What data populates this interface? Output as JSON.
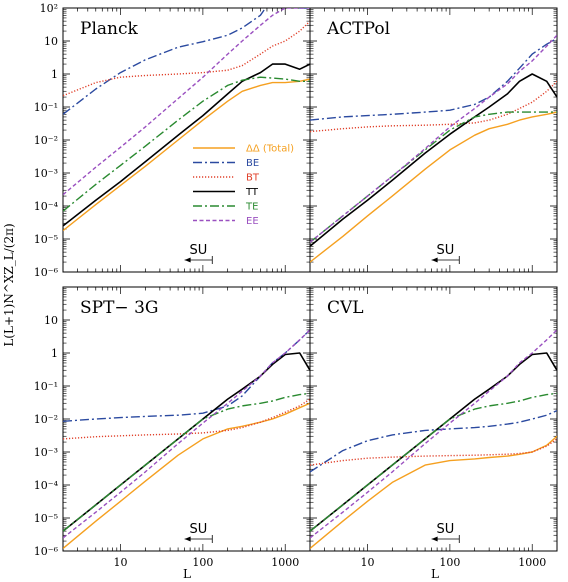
{
  "chart_data": [
    {
      "type": "line",
      "title": "Planck",
      "xlabel": "L",
      "ylabel": "L(L+1)N^XZ_L/(2π)",
      "x_scale": "log",
      "y_scale": "log",
      "xlim": [
        2,
        2000
      ],
      "ylim": [
        1e-06,
        100
      ],
      "legend": {
        "position": "center",
        "entries": [
          "ΔΔ (Total)",
          "BE",
          "BT",
          "TT",
          "TE",
          "EE"
        ]
      },
      "annotation": {
        "text": "SU",
        "arrow": "left",
        "x_start": 130,
        "x_end": 60
      },
      "x": [
        2,
        5,
        10,
        20,
        50,
        100,
        200,
        300,
        500,
        700,
        1000,
        1500,
        2000
      ],
      "series": [
        {
          "name": "ΔΔ (Total)",
          "color": "#f5a020",
          "dash": "solid",
          "values": [
            1.8e-05,
            0.00011,
            0.00042,
            0.0016,
            0.01,
            0.04,
            0.15,
            0.3,
            0.45,
            0.55,
            0.55,
            0.6,
            0.7
          ]
        },
        {
          "name": "BE",
          "color": "#2b4aa0",
          "dash": "dashdot",
          "values": [
            0.06,
            0.35,
            1.1,
            2.7,
            6.5,
            9.5,
            15,
            25,
            60,
            200,
            500,
            100,
            100
          ]
        },
        {
          "name": "BT",
          "color": "#e0402a",
          "dash": "dotted",
          "values": [
            0.22,
            0.55,
            0.8,
            0.9,
            1.0,
            1.1,
            1.3,
            1.8,
            4.0,
            7.0,
            10,
            20,
            40
          ]
        },
        {
          "name": "TT",
          "color": "#000000",
          "dash": "solid",
          "values": [
            2.5e-05,
            0.00015,
            0.00055,
            0.0022,
            0.014,
            0.055,
            0.25,
            0.6,
            1.1,
            2.0,
            2.0,
            1.4,
            2.0
          ]
        },
        {
          "name": "TE",
          "color": "#2a8a30",
          "dash": "dashdot",
          "values": [
            7e-05,
            0.00045,
            0.0017,
            0.0065,
            0.04,
            0.15,
            0.45,
            0.65,
            0.8,
            0.75,
            0.7,
            0.6,
            0.6
          ]
        },
        {
          "name": "EE",
          "color": "#9a50c0",
          "dash": "dashed",
          "values": [
            0.00022,
            0.0015,
            0.006,
            0.025,
            0.18,
            0.8,
            4,
            10,
            30,
            60,
            100,
            100,
            100
          ]
        }
      ]
    },
    {
      "type": "line",
      "title": "ACTPol",
      "xlabel": "L",
      "ylabel": "L(L+1)N^XZ_L/(2π)",
      "x_scale": "log",
      "y_scale": "log",
      "xlim": [
        2,
        2000
      ],
      "ylim": [
        1e-06,
        100
      ],
      "annotation": {
        "text": "SU",
        "arrow": "left",
        "x_start": 130,
        "x_end": 60
      },
      "x": [
        2,
        5,
        10,
        20,
        50,
        100,
        200,
        300,
        500,
        700,
        1000,
        1500,
        2000
      ],
      "series": [
        {
          "name": "ΔΔ (Total)",
          "color": "#f5a020",
          "dash": "solid",
          "values": [
            2e-06,
            1.2e-05,
            5e-05,
            0.0002,
            0.0013,
            0.005,
            0.014,
            0.022,
            0.03,
            0.04,
            0.05,
            0.06,
            0.07
          ]
        },
        {
          "name": "BE",
          "color": "#2b4aa0",
          "dash": "dashdot",
          "values": [
            0.04,
            0.05,
            0.055,
            0.06,
            0.07,
            0.08,
            0.12,
            0.2,
            0.6,
            1.5,
            4,
            8,
            12
          ]
        },
        {
          "name": "BT",
          "color": "#e0402a",
          "dash": "dotted",
          "values": [
            0.018,
            0.022,
            0.025,
            0.027,
            0.028,
            0.03,
            0.033,
            0.04,
            0.06,
            0.09,
            0.14,
            0.3,
            0.6
          ]
        },
        {
          "name": "TT",
          "color": "#000000",
          "dash": "solid",
          "values": [
            6e-06,
            4e-05,
            0.00015,
            0.0006,
            0.004,
            0.015,
            0.05,
            0.1,
            0.25,
            0.6,
            1.0,
            0.6,
            0.2
          ]
        },
        {
          "name": "TE",
          "color": "#2a8a30",
          "dash": "dashdot",
          "values": [
            8e-06,
            5e-05,
            0.0002,
            0.0008,
            0.005,
            0.02,
            0.05,
            0.06,
            0.07,
            0.07,
            0.07,
            0.07,
            0.07
          ]
        },
        {
          "name": "EE",
          "color": "#9a50c0",
          "dash": "dashed",
          "values": [
            8e-06,
            5e-05,
            0.0002,
            0.0008,
            0.0055,
            0.025,
            0.09,
            0.2,
            0.5,
            1.2,
            2.5,
            7,
            15
          ]
        }
      ]
    },
    {
      "type": "line",
      "title": "SPT− 3G",
      "xlabel": "L",
      "ylabel": "L(L+1)N^XZ_L/(2π)",
      "x_scale": "log",
      "y_scale": "log",
      "xlim": [
        2,
        2000
      ],
      "ylim": [
        1e-06,
        100
      ],
      "annotation": {
        "text": "SU",
        "arrow": "left",
        "x_start": 130,
        "x_end": 60
      },
      "x": [
        2,
        5,
        10,
        20,
        50,
        100,
        200,
        300,
        500,
        700,
        1000,
        1500,
        2000
      ],
      "series": [
        {
          "name": "ΔΔ (Total)",
          "color": "#f5a020",
          "dash": "solid",
          "values": [
            1.2e-06,
            8e-06,
            3.2e-05,
            0.00013,
            0.0008,
            0.0025,
            0.005,
            0.006,
            0.008,
            0.01,
            0.014,
            0.022,
            0.03
          ]
        },
        {
          "name": "BE",
          "color": "#2b4aa0",
          "dash": "dashdot",
          "values": [
            0.0085,
            0.01,
            0.011,
            0.012,
            0.013,
            0.015,
            0.025,
            0.05,
            0.2,
            0.5,
            1.0,
            2.5,
            5
          ]
        },
        {
          "name": "BT",
          "color": "#e0402a",
          "dash": "dotted",
          "values": [
            0.0025,
            0.0029,
            0.0031,
            0.0033,
            0.0035,
            0.0038,
            0.0045,
            0.0055,
            0.008,
            0.011,
            0.016,
            0.025,
            0.04
          ]
        },
        {
          "name": "TT",
          "color": "#000000",
          "dash": "solid",
          "values": [
            4e-06,
            2.5e-05,
            0.0001,
            0.0004,
            0.0025,
            0.01,
            0.04,
            0.08,
            0.2,
            0.45,
            0.9,
            1.0,
            0.3
          ]
        },
        {
          "name": "TE",
          "color": "#2a8a30",
          "dash": "dashdot",
          "values": [
            4e-06,
            2.5e-05,
            0.0001,
            0.0004,
            0.0025,
            0.01,
            0.02,
            0.025,
            0.03,
            0.035,
            0.045,
            0.055,
            0.06
          ]
        },
        {
          "name": "EE",
          "color": "#9a50c0",
          "dash": "dashed",
          "values": [
            2.5e-06,
            1.5e-05,
            6e-05,
            0.00025,
            0.0018,
            0.0075,
            0.03,
            0.07,
            0.2,
            0.5,
            1.0,
            2.5,
            5
          ]
        }
      ]
    },
    {
      "type": "line",
      "title": "CVL",
      "xlabel": "L",
      "ylabel": "L(L+1)N^XZ_L/(2π)",
      "x_scale": "log",
      "y_scale": "log",
      "xlim": [
        2,
        2000
      ],
      "ylim": [
        1e-06,
        100
      ],
      "annotation": {
        "text": "SU",
        "arrow": "left",
        "x_start": 130,
        "x_end": 60
      },
      "x": [
        2,
        5,
        10,
        20,
        50,
        100,
        200,
        300,
        500,
        700,
        1000,
        1500,
        2000
      ],
      "series": [
        {
          "name": "ΔΔ (Total)",
          "color": "#f5a020",
          "dash": "solid",
          "values": [
            1.2e-06,
            8e-06,
            3.2e-05,
            0.00012,
            0.0004,
            0.00055,
            0.00062,
            0.00068,
            0.00075,
            0.00085,
            0.001,
            0.0016,
            0.003
          ]
        },
        {
          "name": "BE",
          "color": "#2b4aa0",
          "dash": "dashdot",
          "values": [
            0.00025,
            0.0011,
            0.0022,
            0.0033,
            0.0045,
            0.005,
            0.0055,
            0.006,
            0.007,
            0.008,
            0.01,
            0.013,
            0.018
          ]
        },
        {
          "name": "BT",
          "color": "#e0402a",
          "dash": "dotted",
          "values": [
            0.0004,
            0.00055,
            0.00065,
            0.0007,
            0.00075,
            0.00078,
            0.0008,
            0.00082,
            0.00086,
            0.0009,
            0.001,
            0.0015,
            0.0025
          ]
        },
        {
          "name": "TT",
          "color": "#000000",
          "dash": "solid",
          "values": [
            4e-06,
            2.5e-05,
            0.0001,
            0.0004,
            0.0025,
            0.01,
            0.04,
            0.08,
            0.2,
            0.45,
            0.9,
            1.0,
            0.3
          ]
        },
        {
          "name": "TE",
          "color": "#2a8a30",
          "dash": "dashdot",
          "values": [
            4e-06,
            2.5e-05,
            0.0001,
            0.0004,
            0.0025,
            0.01,
            0.02,
            0.025,
            0.03,
            0.035,
            0.045,
            0.055,
            0.06
          ]
        },
        {
          "name": "EE",
          "color": "#9a50c0",
          "dash": "dashed",
          "values": [
            2.5e-06,
            1.5e-05,
            6e-05,
            0.00025,
            0.0018,
            0.0075,
            0.03,
            0.07,
            0.2,
            0.5,
            1.0,
            2.5,
            5
          ]
        }
      ]
    }
  ],
  "y_tick_labels": [
    "10⁻⁶",
    "10⁻⁵",
    "10⁻⁴",
    "10⁻³",
    "10⁻²",
    "10⁻¹",
    "1",
    "10",
    "10²"
  ],
  "x_tick_labels": [
    "10",
    "100",
    "1000"
  ],
  "axis_titles": {
    "x": "L",
    "y": "L(L+1)N^XZ_L/(2π)"
  }
}
